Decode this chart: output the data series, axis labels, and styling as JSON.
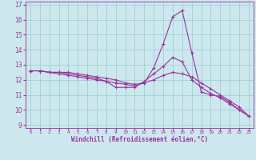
{
  "xlabel": "Windchill (Refroidissement éolien,°C)",
  "bg_color": "#cce8ee",
  "line_color": "#993399",
  "grid_color": "#99cccc",
  "xlim": [
    -0.5,
    23.5
  ],
  "ylim": [
    8.8,
    17.2
  ],
  "xticks": [
    0,
    1,
    2,
    3,
    4,
    5,
    6,
    7,
    8,
    9,
    10,
    11,
    12,
    13,
    14,
    15,
    16,
    17,
    18,
    19,
    20,
    21,
    22,
    23
  ],
  "yticks": [
    9,
    10,
    11,
    12,
    13,
    14,
    15,
    16,
    17
  ],
  "line1": [
    12.6,
    12.6,
    12.5,
    12.5,
    12.5,
    12.4,
    12.3,
    12.2,
    12.1,
    12.0,
    11.8,
    11.7,
    11.8,
    12.8,
    14.4,
    16.2,
    16.6,
    13.8,
    11.2,
    11.0,
    10.9,
    10.5,
    10.0,
    9.6
  ],
  "line2": [
    12.6,
    12.6,
    12.5,
    12.5,
    12.4,
    12.3,
    12.2,
    12.1,
    11.9,
    11.5,
    11.5,
    11.5,
    11.9,
    12.4,
    12.9,
    13.5,
    13.2,
    12.0,
    11.5,
    11.1,
    10.8,
    10.4,
    10.0,
    9.6
  ],
  "line3": [
    12.6,
    12.6,
    12.5,
    12.4,
    12.3,
    12.2,
    12.1,
    12.0,
    11.9,
    11.8,
    11.7,
    11.6,
    11.8,
    12.0,
    12.3,
    12.5,
    12.4,
    12.2,
    11.8,
    11.4,
    11.0,
    10.6,
    10.2,
    9.6
  ],
  "lw": 0.8,
  "marker_size": 2.5,
  "xlabel_fontsize": 5.5,
  "ytick_fontsize": 5.5,
  "xtick_fontsize": 4.2
}
